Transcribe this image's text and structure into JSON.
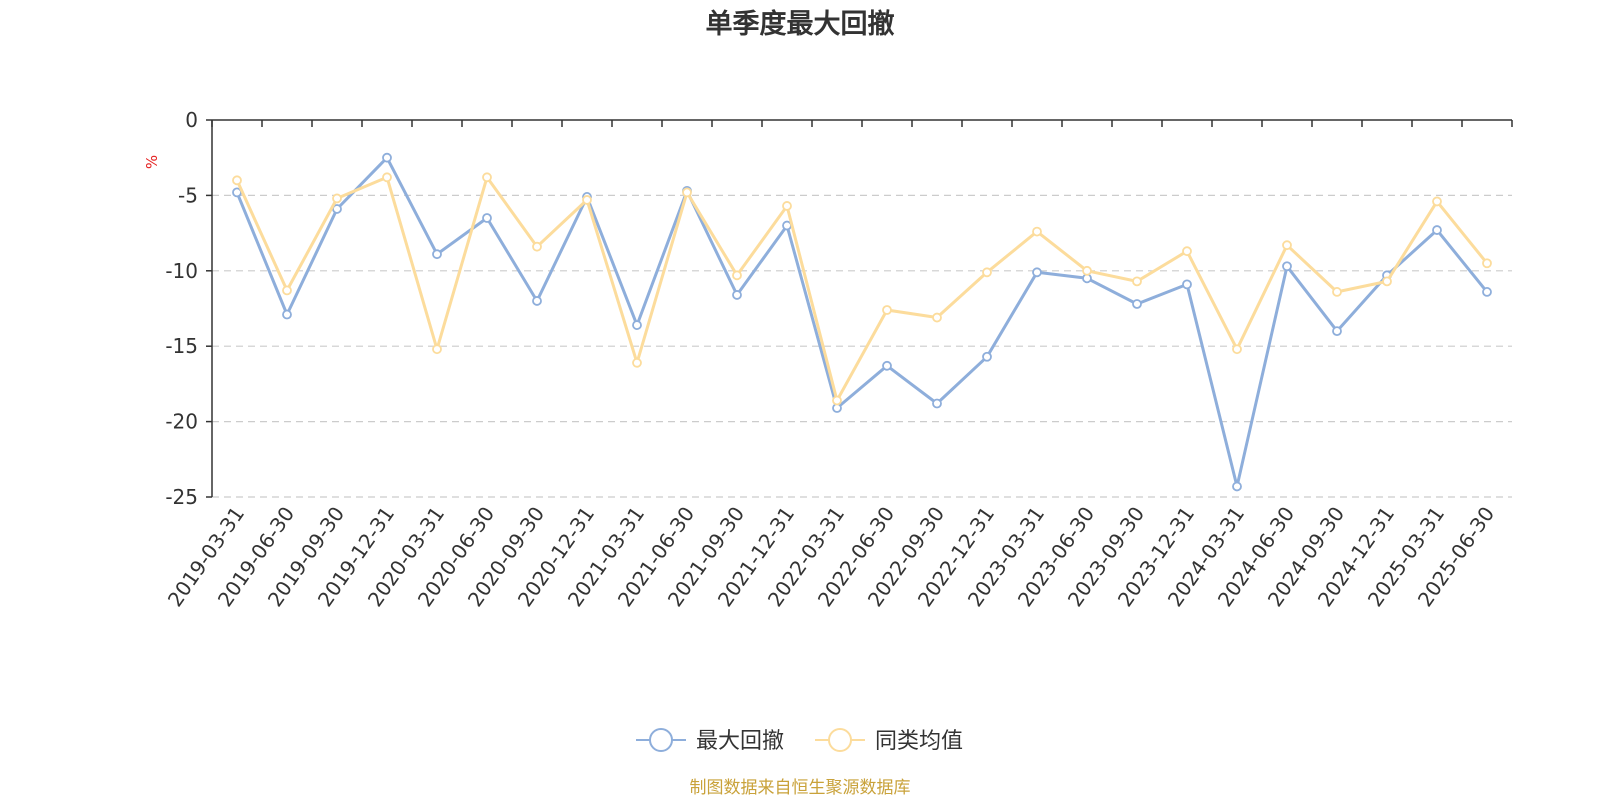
{
  "chart_data": {
    "type": "line",
    "title": "单季度最大回撤",
    "ylabel": "%",
    "ylim": [
      -25,
      0
    ],
    "yticks": [
      0,
      -5,
      -10,
      -15,
      -20,
      -25
    ],
    "grid": true,
    "legend_position": "bottom-center",
    "x": [
      "2019-03-31",
      "2019-06-30",
      "2019-09-30",
      "2019-12-31",
      "2020-03-31",
      "2020-06-30",
      "2020-09-30",
      "2020-12-31",
      "2021-03-31",
      "2021-06-30",
      "2021-09-30",
      "2021-12-31",
      "2022-03-31",
      "2022-06-30",
      "2022-09-30",
      "2022-12-31",
      "2023-03-31",
      "2023-06-30",
      "2023-09-30",
      "2023-12-31",
      "2024-03-31",
      "2024-06-30",
      "2024-09-30",
      "2024-12-31",
      "2025-03-31",
      "2025-06-30"
    ],
    "series": [
      {
        "name": "最大回撤",
        "color": "#8eaedb",
        "values": [
          -4.8,
          -12.9,
          -5.9,
          -2.5,
          -8.9,
          -6.5,
          -12.0,
          -5.1,
          -13.6,
          -4.7,
          -11.6,
          -7.0,
          -19.1,
          -16.3,
          -18.8,
          -15.7,
          -10.1,
          -10.5,
          -12.2,
          -10.9,
          -24.3,
          -9.7,
          -14.0,
          -10.3,
          -7.3,
          -11.4
        ]
      },
      {
        "name": "同类均值",
        "color": "#fcdc9c",
        "values": [
          -4.0,
          -11.3,
          -5.2,
          -3.8,
          -15.2,
          -3.8,
          -8.4,
          -5.3,
          -16.1,
          -4.8,
          -10.3,
          -5.7,
          -18.6,
          -12.6,
          -13.1,
          -10.1,
          -7.4,
          -10.0,
          -10.7,
          -8.7,
          -15.2,
          -8.3,
          -11.4,
          -10.7,
          -5.4,
          -9.5
        ]
      }
    ],
    "source_note": "制图数据来自恒生聚源数据库",
    "colors": {
      "axis": "#333333",
      "grid": "#cccccc",
      "unit": "#e52222",
      "source": "#c9a23a"
    }
  }
}
